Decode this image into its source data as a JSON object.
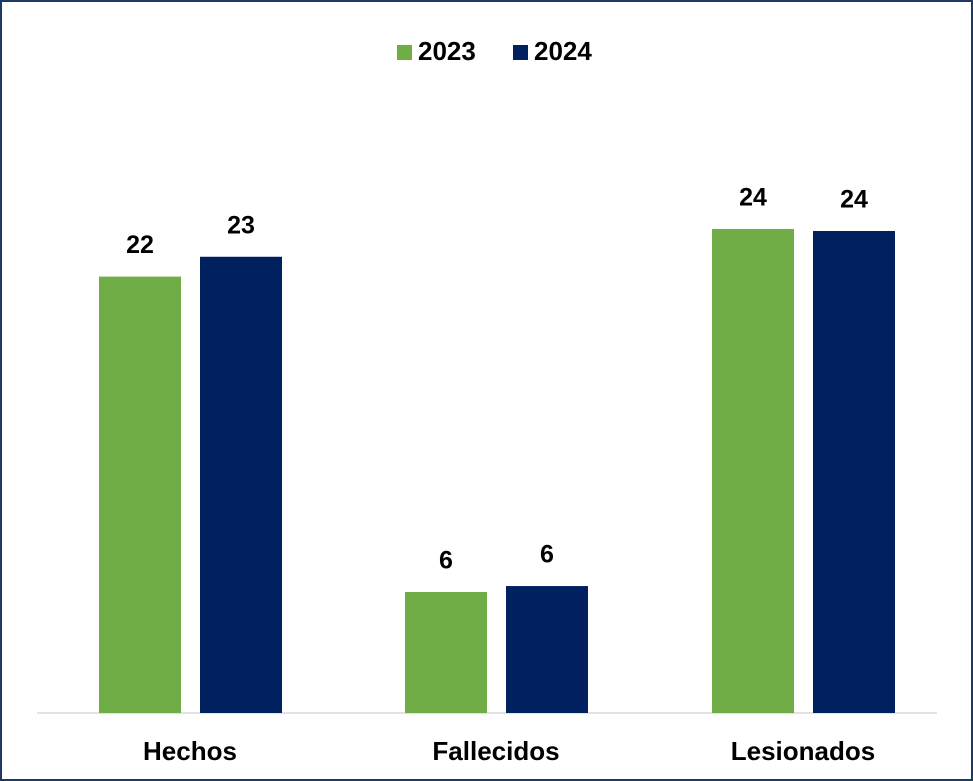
{
  "chart_data": {
    "type": "bar",
    "categories": [
      "Hechos",
      "Fallecidos",
      "Lesionados"
    ],
    "series": [
      {
        "name": "2023",
        "color": "#70ad47",
        "values": [
          22,
          6.1,
          24.4
        ],
        "value_labels": [
          "22",
          "6",
          "24"
        ]
      },
      {
        "name": "2024",
        "color": "#002060",
        "values": [
          23,
          6.4,
          24.3
        ],
        "value_labels": [
          "23",
          "6",
          "24"
        ]
      }
    ],
    "legend": "top"
  }
}
